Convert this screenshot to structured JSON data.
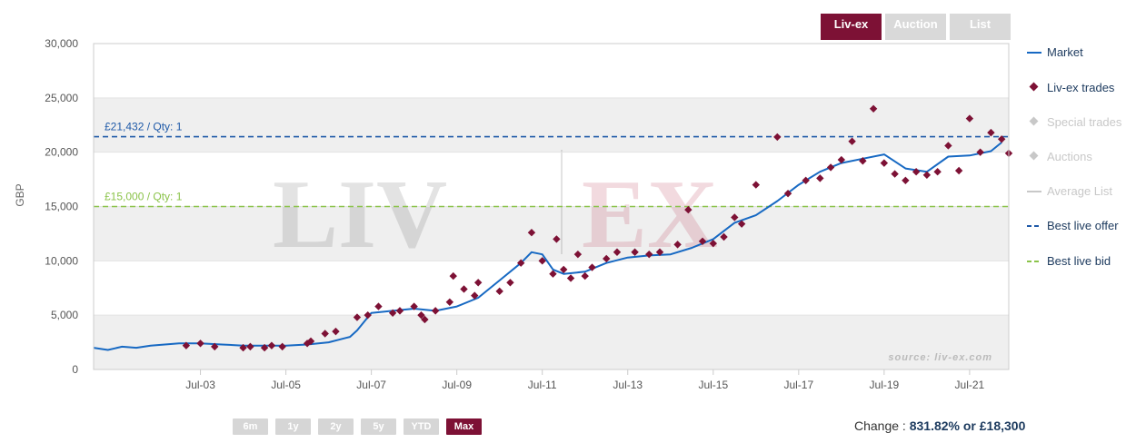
{
  "tabs": [
    {
      "label": "Liv-ex",
      "active": true
    },
    {
      "label": "Auction",
      "active": false
    },
    {
      "label": "List",
      "active": false
    }
  ],
  "range_buttons": [
    {
      "label": "6m",
      "active": false
    },
    {
      "label": "1y",
      "active": false
    },
    {
      "label": "2y",
      "active": false
    },
    {
      "label": "5y",
      "active": false
    },
    {
      "label": "YTD",
      "active": false
    },
    {
      "label": "Max",
      "active": true
    }
  ],
  "change": {
    "label": "Change :",
    "value": "831.82% or £18,300"
  },
  "colors": {
    "market": "#1769c3",
    "trades": "#7d1135",
    "faded": "#c8c8c8",
    "offer": "#1f5aa8",
    "bid": "#8bc34a",
    "accent": "#7d1135"
  },
  "chart_data": {
    "type": "line",
    "ylabel": "GBP",
    "ylim": [
      0,
      30000
    ],
    "yticks": [
      "0",
      "5,000",
      "10,000",
      "15,000",
      "20,000",
      "25,000",
      "30,000"
    ],
    "y_bands": true,
    "xlim": [
      "2001-01",
      "2022-06"
    ],
    "xticks": [
      "Jul-03",
      "Jul-05",
      "Jul-07",
      "Jul-09",
      "Jul-11",
      "Jul-13",
      "Jul-15",
      "Jul-17",
      "Jul-19",
      "Jul-21"
    ],
    "watermark": "LIV-EX",
    "source": "source: liv-ex.com",
    "legend": [
      {
        "name": "Market",
        "symbol": "line",
        "color": "#1769c3",
        "visible": true
      },
      {
        "name": "Liv-ex trades",
        "symbol": "diamond",
        "color": "#7d1135",
        "visible": true
      },
      {
        "name": "Special trades",
        "symbol": "diamond",
        "color": "#c8c8c8",
        "visible": false
      },
      {
        "name": "Auctions",
        "symbol": "diamond",
        "color": "#c8c8c8",
        "visible": false
      },
      {
        "name": "Average List",
        "symbol": "line",
        "color": "#c8c8c8",
        "visible": false
      },
      {
        "name": "Best live offer",
        "symbol": "dash",
        "color": "#1f5aa8",
        "visible": true
      },
      {
        "name": "Best live bid",
        "symbol": "dash",
        "color": "#8bc34a",
        "visible": true
      }
    ],
    "reference_lines": [
      {
        "label": "£21,432 / Qty: 1",
        "value": 21432,
        "color": "#1f5aa8"
      },
      {
        "label": "£15,000 / Qty: 1",
        "value": 15000,
        "color": "#8bc34a"
      }
    ],
    "series": [
      {
        "name": "Market",
        "x": [
          "2001-01",
          "2001-05",
          "2001-09",
          "2002-01",
          "2002-05",
          "2002-09",
          "2003-01",
          "2003-07",
          "2004-01",
          "2004-07",
          "2005-01",
          "2005-07",
          "2006-01",
          "2006-07",
          "2007-01",
          "2007-03",
          "2007-07",
          "2008-01",
          "2008-07",
          "2009-01",
          "2009-07",
          "2010-01",
          "2010-07",
          "2011-01",
          "2011-04",
          "2011-07",
          "2011-10",
          "2012-01",
          "2012-07",
          "2013-01",
          "2013-07",
          "2014-01",
          "2014-07",
          "2015-01",
          "2015-07",
          "2016-01",
          "2016-07",
          "2017-01",
          "2017-07",
          "2018-01",
          "2018-07",
          "2019-01",
          "2019-07",
          "2020-01",
          "2020-07",
          "2021-01",
          "2021-07",
          "2022-01",
          "2022-04"
        ],
        "values": [
          2000,
          1800,
          2100,
          2000,
          2200,
          2300,
          2400,
          2400,
          2300,
          2200,
          2200,
          2200,
          2300,
          2500,
          3000,
          3600,
          5200,
          5400,
          5600,
          5400,
          5800,
          6600,
          8200,
          9800,
          10800,
          10600,
          9200,
          8800,
          9000,
          9800,
          10300,
          10500,
          10600,
          11200,
          12000,
          13500,
          14200,
          15500,
          17000,
          18200,
          19000,
          19400,
          19800,
          18500,
          18200,
          19600,
          19700,
          20100,
          20900
        ]
      },
      {
        "name": "Liv-ex trades",
        "x": [
          "2003-03",
          "2003-07",
          "2003-11",
          "2004-07",
          "2004-09",
          "2005-01",
          "2005-03",
          "2005-06",
          "2006-01",
          "2006-02",
          "2006-06",
          "2006-09",
          "2007-03",
          "2007-06",
          "2007-09",
          "2008-01",
          "2008-03",
          "2008-07",
          "2008-09",
          "2008-10",
          "2009-01",
          "2009-05",
          "2009-06",
          "2009-09",
          "2009-12",
          "2010-01",
          "2010-07",
          "2010-10",
          "2011-01",
          "2011-04",
          "2011-07",
          "2011-10",
          "2011-11",
          "2012-01",
          "2012-03",
          "2012-05",
          "2012-07",
          "2012-09",
          "2013-01",
          "2013-04",
          "2013-09",
          "2014-01",
          "2014-04",
          "2014-09",
          "2014-12",
          "2015-04",
          "2015-07",
          "2015-10",
          "2016-01",
          "2016-03",
          "2016-07",
          "2017-01",
          "2017-04",
          "2017-09",
          "2018-01",
          "2018-04",
          "2018-07",
          "2018-10",
          "2019-01",
          "2019-04",
          "2019-07",
          "2019-10",
          "2020-01",
          "2020-04",
          "2020-07",
          "2020-10",
          "2021-01",
          "2021-04",
          "2021-07",
          "2021-10",
          "2022-01",
          "2022-04",
          "2022-06"
        ],
        "values": [
          2200,
          2400,
          2100,
          2000,
          2100,
          2000,
          2200,
          2100,
          2400,
          2600,
          3300,
          3500,
          4800,
          5000,
          5800,
          5200,
          5400,
          5800,
          5000,
          4600,
          5400,
          6200,
          8600,
          7400,
          6800,
          8000,
          7200,
          8000,
          9800,
          12600,
          10000,
          8800,
          12000,
          9200,
          8400,
          10600,
          8600,
          9400,
          10200,
          10800,
          10800,
          10600,
          10800,
          11500,
          14700,
          11800,
          11600,
          12200,
          14000,
          13400,
          17000,
          21400,
          16200,
          17400,
          17600,
          18600,
          19300,
          21000,
          19200,
          24000,
          19000,
          18000,
          17400,
          18200,
          17900,
          18200,
          20600,
          18300,
          23100,
          20000,
          21800,
          21200,
          19900
        ]
      }
    ]
  }
}
